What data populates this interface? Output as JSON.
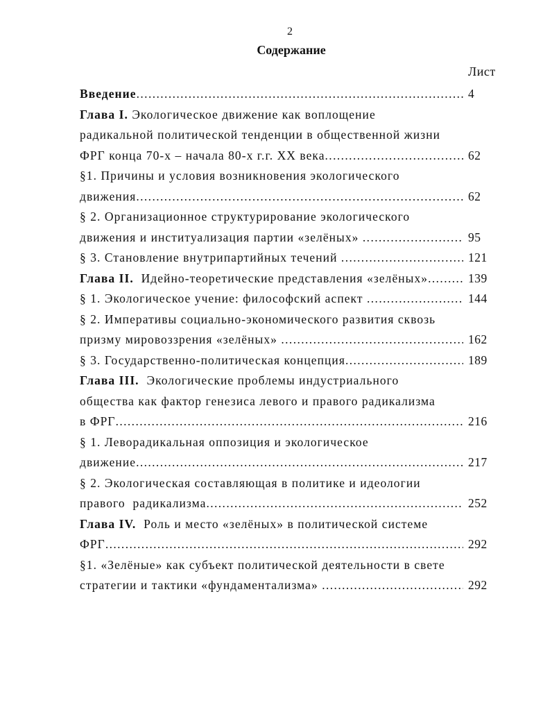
{
  "page_number": "2",
  "title": "Содержание",
  "page_column_header": "Лист",
  "lines": [
    {
      "bold": "Введение",
      "text": "",
      "page": "4"
    },
    {
      "bold": "Глава I.",
      "text": " Экологическое движение как воплощение",
      "page": null
    },
    {
      "bold": "",
      "text": "радикальной политической тенденции в общественной жизни",
      "page": null
    },
    {
      "bold": "",
      "text": "ФРГ конца 70-х – начала 80-х г.г. XX века",
      "page": "62"
    },
    {
      "bold": "",
      "text": "§1. Причины и условия возникновения экологического",
      "page": null
    },
    {
      "bold": "",
      "text": "движения",
      "page": "62"
    },
    {
      "bold": "",
      "text": "§ 2. Организационное структурирование экологического",
      "page": null
    },
    {
      "bold": "",
      "text": "движения и институализация партии «зелёных» ",
      "page": "95"
    },
    {
      "bold": "",
      "text": "§ 3. Становление внутрипартийных течений ",
      "page": "121"
    },
    {
      "bold": "Глава II.",
      "text": "  Идейно-теоретические представления «зелёных»",
      "page": "139"
    },
    {
      "bold": "",
      "text": "§ 1. Экологическое учение: философский аспект ",
      "page": "144"
    },
    {
      "bold": "",
      "text": "§ 2. Императивы социально-экономического развития сквозь",
      "page": null
    },
    {
      "bold": "",
      "text": "призму мировоззрения «зелёных» ",
      "page": "162"
    },
    {
      "bold": "",
      "text": "§ 3. Государственно-политическая концепция",
      "page": "189"
    },
    {
      "bold": "Глава III.",
      "text": "  Экологические проблемы индустриального",
      "page": null
    },
    {
      "bold": "",
      "text": "общества как фактор генезиса левого и правого радикализма",
      "page": null
    },
    {
      "bold": "",
      "text": "в ФРГ",
      "page": "216"
    },
    {
      "bold": "",
      "text": "§ 1. Леворадикальная оппозиция и экологическое",
      "page": null
    },
    {
      "bold": "",
      "text": "движение",
      "page": "217"
    },
    {
      "bold": "",
      "text": "§ 2. Экологическая составляющая в политике и идеологии",
      "page": null
    },
    {
      "bold": "",
      "text": "правого  радикализма",
      "page": "252"
    },
    {
      "bold": "Глава IV.",
      "text": "  Роль и место «зелёных» в политической системе",
      "page": null
    },
    {
      "bold": "",
      "text": "ФРГ",
      "page": "292"
    },
    {
      "bold": "",
      "text": "§1. «Зелёные» как субъект политической деятельности в свете",
      "page": null
    },
    {
      "bold": "",
      "text": "стратегии и тактики «фундаментализма» ",
      "page": "292"
    }
  ]
}
